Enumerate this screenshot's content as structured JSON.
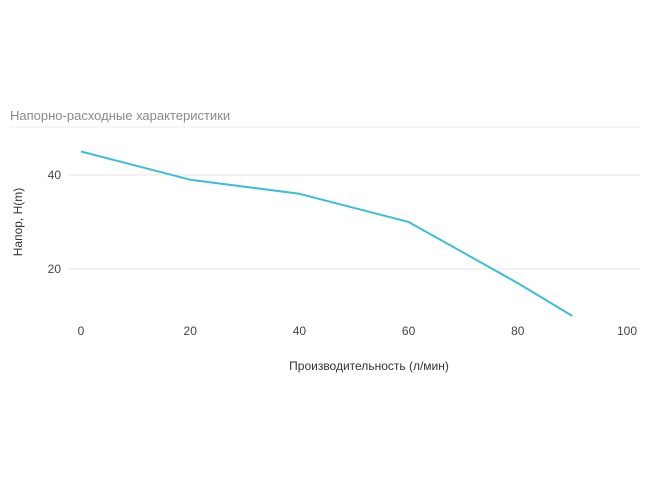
{
  "chart_data": {
    "type": "line",
    "title": "Напорно-расходные характеристики",
    "xlabel": "Производительность (л/мин)",
    "ylabel": "Напор, H(m)",
    "x_ticks": [
      0,
      20,
      40,
      60,
      80,
      100
    ],
    "y_ticks": [
      20,
      40
    ],
    "xlim": [
      0,
      100
    ],
    "ylim": [
      10,
      48
    ],
    "grid": true,
    "series": [
      {
        "x": [
          0,
          20,
          40,
          60,
          80,
          90
        ],
        "y": [
          45,
          39,
          36,
          30,
          17,
          10
        ],
        "color": "#3bbfd6"
      }
    ]
  }
}
